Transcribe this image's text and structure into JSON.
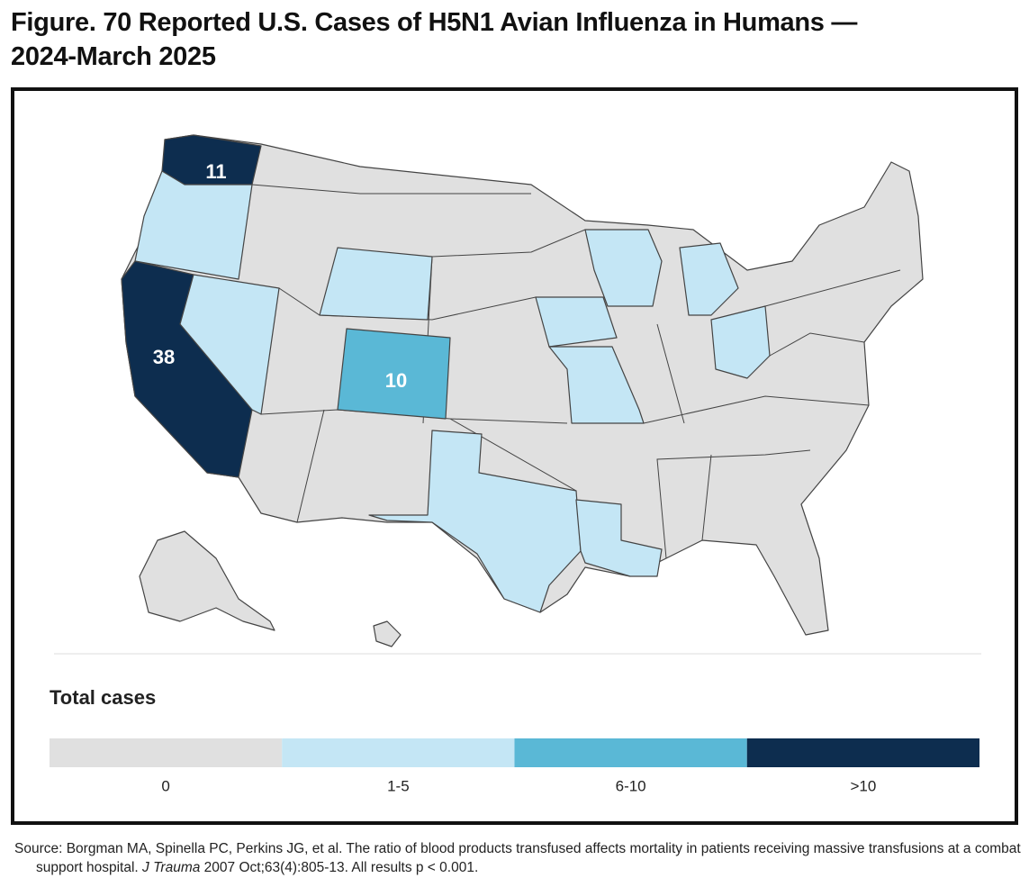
{
  "header": {
    "title_line1": "Figure. 70 Reported U.S. Cases of H5N1 Avian Influenza in Humans —",
    "title_line2": "2024-March 2025"
  },
  "map": {
    "value_labels": [
      11,
      38,
      10
    ]
  },
  "legend": {
    "title": "Total cases",
    "items": [
      {
        "label": "0",
        "color": "#e0e0e0"
      },
      {
        "label": "1-5",
        "color": "#c4e6f5"
      },
      {
        "label": "6-10",
        "color": "#5ab8d6"
      },
      {
        "label": ">10",
        "color": "#0d2d4f"
      }
    ]
  },
  "source": {
    "before": "Source: Borgman MA, Spinella PC, Perkins JG, et al. The ratio of blood products transfused affects mortality in patients receiving massive transfusions at a combat support hospital. ",
    "journal": "J Trauma",
    "after": " 2007 Oct;63(4):805-13. All results p < 0.001."
  }
}
